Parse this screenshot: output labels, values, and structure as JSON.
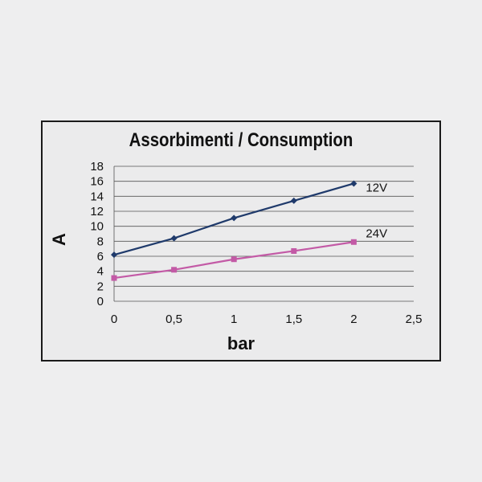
{
  "chart_data": {
    "type": "line",
    "title": "Assorbimenti / Consumption",
    "xlabel": "bar",
    "ylabel": "A",
    "xlim": [
      0,
      2.5
    ],
    "ylim": [
      0,
      18
    ],
    "x_ticks": [
      "0",
      "0,5",
      "1",
      "1,5",
      "2",
      "2,5"
    ],
    "y_ticks": [
      "0",
      "2",
      "4",
      "6",
      "8",
      "10",
      "12",
      "14",
      "16",
      "18"
    ],
    "grid": true,
    "series": [
      {
        "name": "12V",
        "color": "#1f3a6b",
        "marker": "diamond",
        "x": [
          0,
          0.5,
          1,
          1.5,
          2
        ],
        "y": [
          6.2,
          8.4,
          11.1,
          13.4,
          15.7
        ]
      },
      {
        "name": "24V",
        "color": "#c35aa6",
        "marker": "square",
        "x": [
          0,
          0.5,
          1,
          1.5,
          2
        ],
        "y": [
          3.1,
          4.2,
          5.6,
          6.7,
          7.9
        ]
      }
    ]
  }
}
